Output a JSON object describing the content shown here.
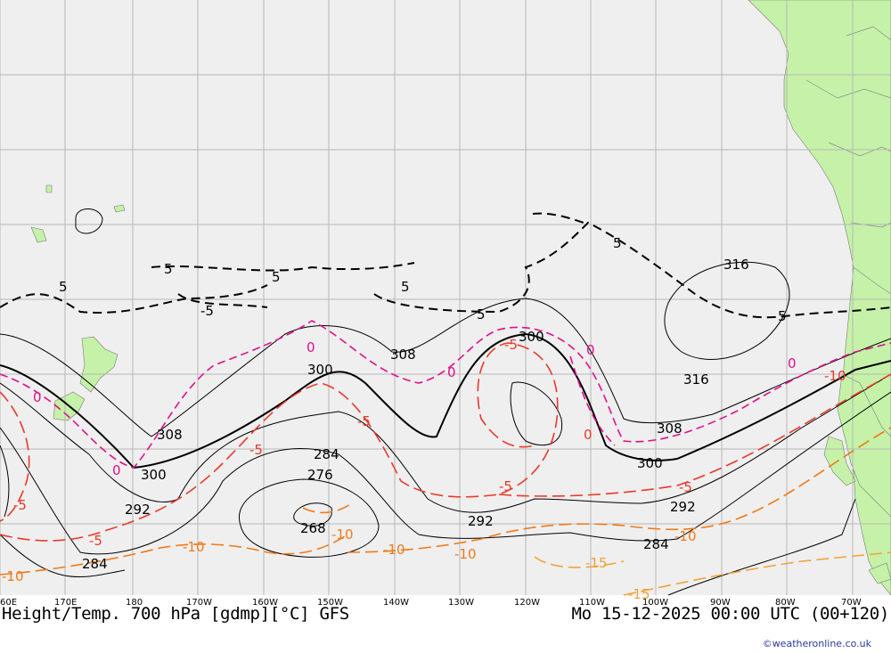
{
  "title_left": "Height/Temp. 700 hPa [gdmp][°C] GFS",
  "title_right": "Mo 15-12-2025 00:00 UTC (00+120)",
  "credit": "©weatheronline.co.uk",
  "colors": {
    "ocean": "#efefef",
    "land": "#c5f2a8",
    "grid": "#b7b7b7",
    "height": "#000000",
    "temp_zero": "#e0108a",
    "temp_minus5": "#e83a2a",
    "temp_minus10": "#f07a18",
    "temp_minus15": "#f2a23a"
  },
  "longitude_labels": [
    "60E",
    "170E",
    "180",
    "170W",
    "160W",
    "150W",
    "140W",
    "130W",
    "120W",
    "110W",
    "100W",
    "90W",
    "80W",
    "70W"
  ],
  "height_labels": [
    "308",
    "300",
    "308",
    "300",
    "316",
    "316",
    "308",
    "300",
    "284",
    "276",
    "268",
    "292",
    "292",
    "284",
    "292",
    "284"
  ],
  "temp_labels": [
    "5",
    "5",
    "5",
    "-5",
    "5",
    "5",
    "5",
    "0",
    "0",
    "0",
    "0",
    "0",
    "-5",
    "-5",
    "0",
    "-5",
    "-5",
    "-5",
    "-5",
    "-10",
    "-10",
    "-10",
    "-10",
    "-15",
    "-10",
    "-10",
    "-15",
    "-10"
  ]
}
